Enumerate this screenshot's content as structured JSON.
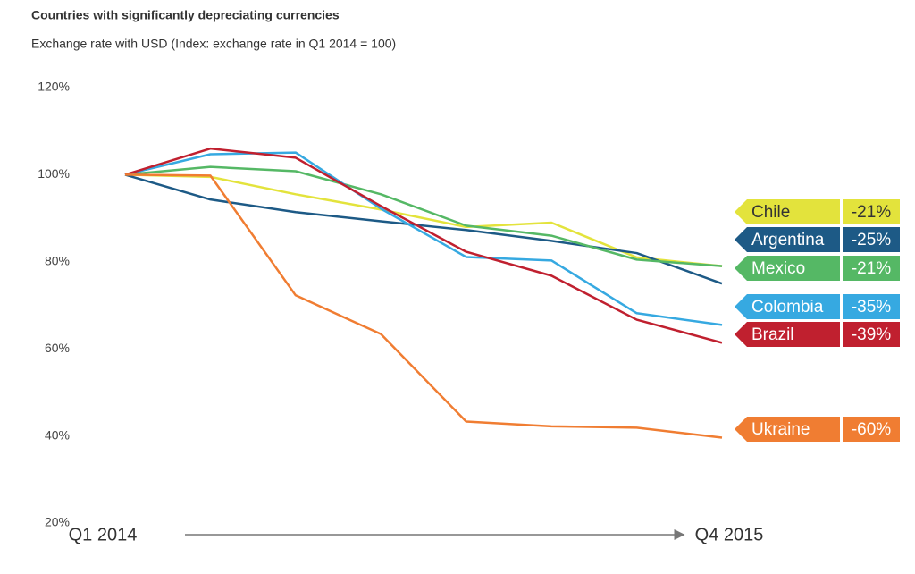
{
  "chart_data": {
    "type": "line",
    "title": "Countries with significantly depreciating currencies",
    "subtitle": "Exchange rate with USD (Index: exchange rate in Q1 2014 = 100)",
    "categories": [
      "Q1 2014",
      null,
      null,
      null,
      null,
      null,
      null,
      "Q4 2015"
    ],
    "ylim": [
      20,
      120
    ],
    "yticks": [
      {
        "value": 20,
        "label": "20%"
      },
      {
        "value": 40,
        "label": "40%"
      },
      {
        "value": 60,
        "label": "60%"
      },
      {
        "value": 80,
        "label": "80%"
      },
      {
        "value": 100,
        "label": "100%"
      },
      {
        "value": 120,
        "label": "120%"
      }
    ],
    "grid": false,
    "series": [
      {
        "name": "Chile",
        "color": "#e3e33c",
        "values": [
          100,
          99.5,
          95.5,
          92,
          88,
          89,
          81,
          79
        ],
        "change": {
          "value": -21,
          "label": "-21%"
        }
      },
      {
        "name": "Argentina",
        "color": "#1d5a86",
        "values": [
          100,
          94.3,
          91.4,
          89.3,
          87.3,
          84.8,
          82,
          75
        ],
        "change": {
          "value": -25,
          "label": "-25%"
        }
      },
      {
        "name": "Mexico",
        "color": "#55b865",
        "values": [
          100,
          101.8,
          100.8,
          95.5,
          88.3,
          86,
          80.5,
          79
        ],
        "change": {
          "value": -21,
          "label": "-21%"
        }
      },
      {
        "name": "Colombia",
        "color": "#36a9e1",
        "values": [
          100,
          104.7,
          105.1,
          92.2,
          81.1,
          80.3,
          68.2,
          65.5
        ],
        "change": {
          "value": -35,
          "label": "-35%"
        }
      },
      {
        "name": "Brazil",
        "color": "#c0202f",
        "values": [
          100,
          106,
          103.9,
          92.8,
          82.3,
          76.8,
          66.7,
          61.4
        ],
        "change": {
          "value": -39,
          "label": "-39%"
        }
      },
      {
        "name": "Ukraine",
        "color": "#f07d32",
        "values": [
          100,
          99.8,
          72.3,
          63.4,
          43.3,
          42.2,
          41.9,
          39.6
        ],
        "change": {
          "value": -60,
          "label": "-60%"
        }
      }
    ]
  }
}
